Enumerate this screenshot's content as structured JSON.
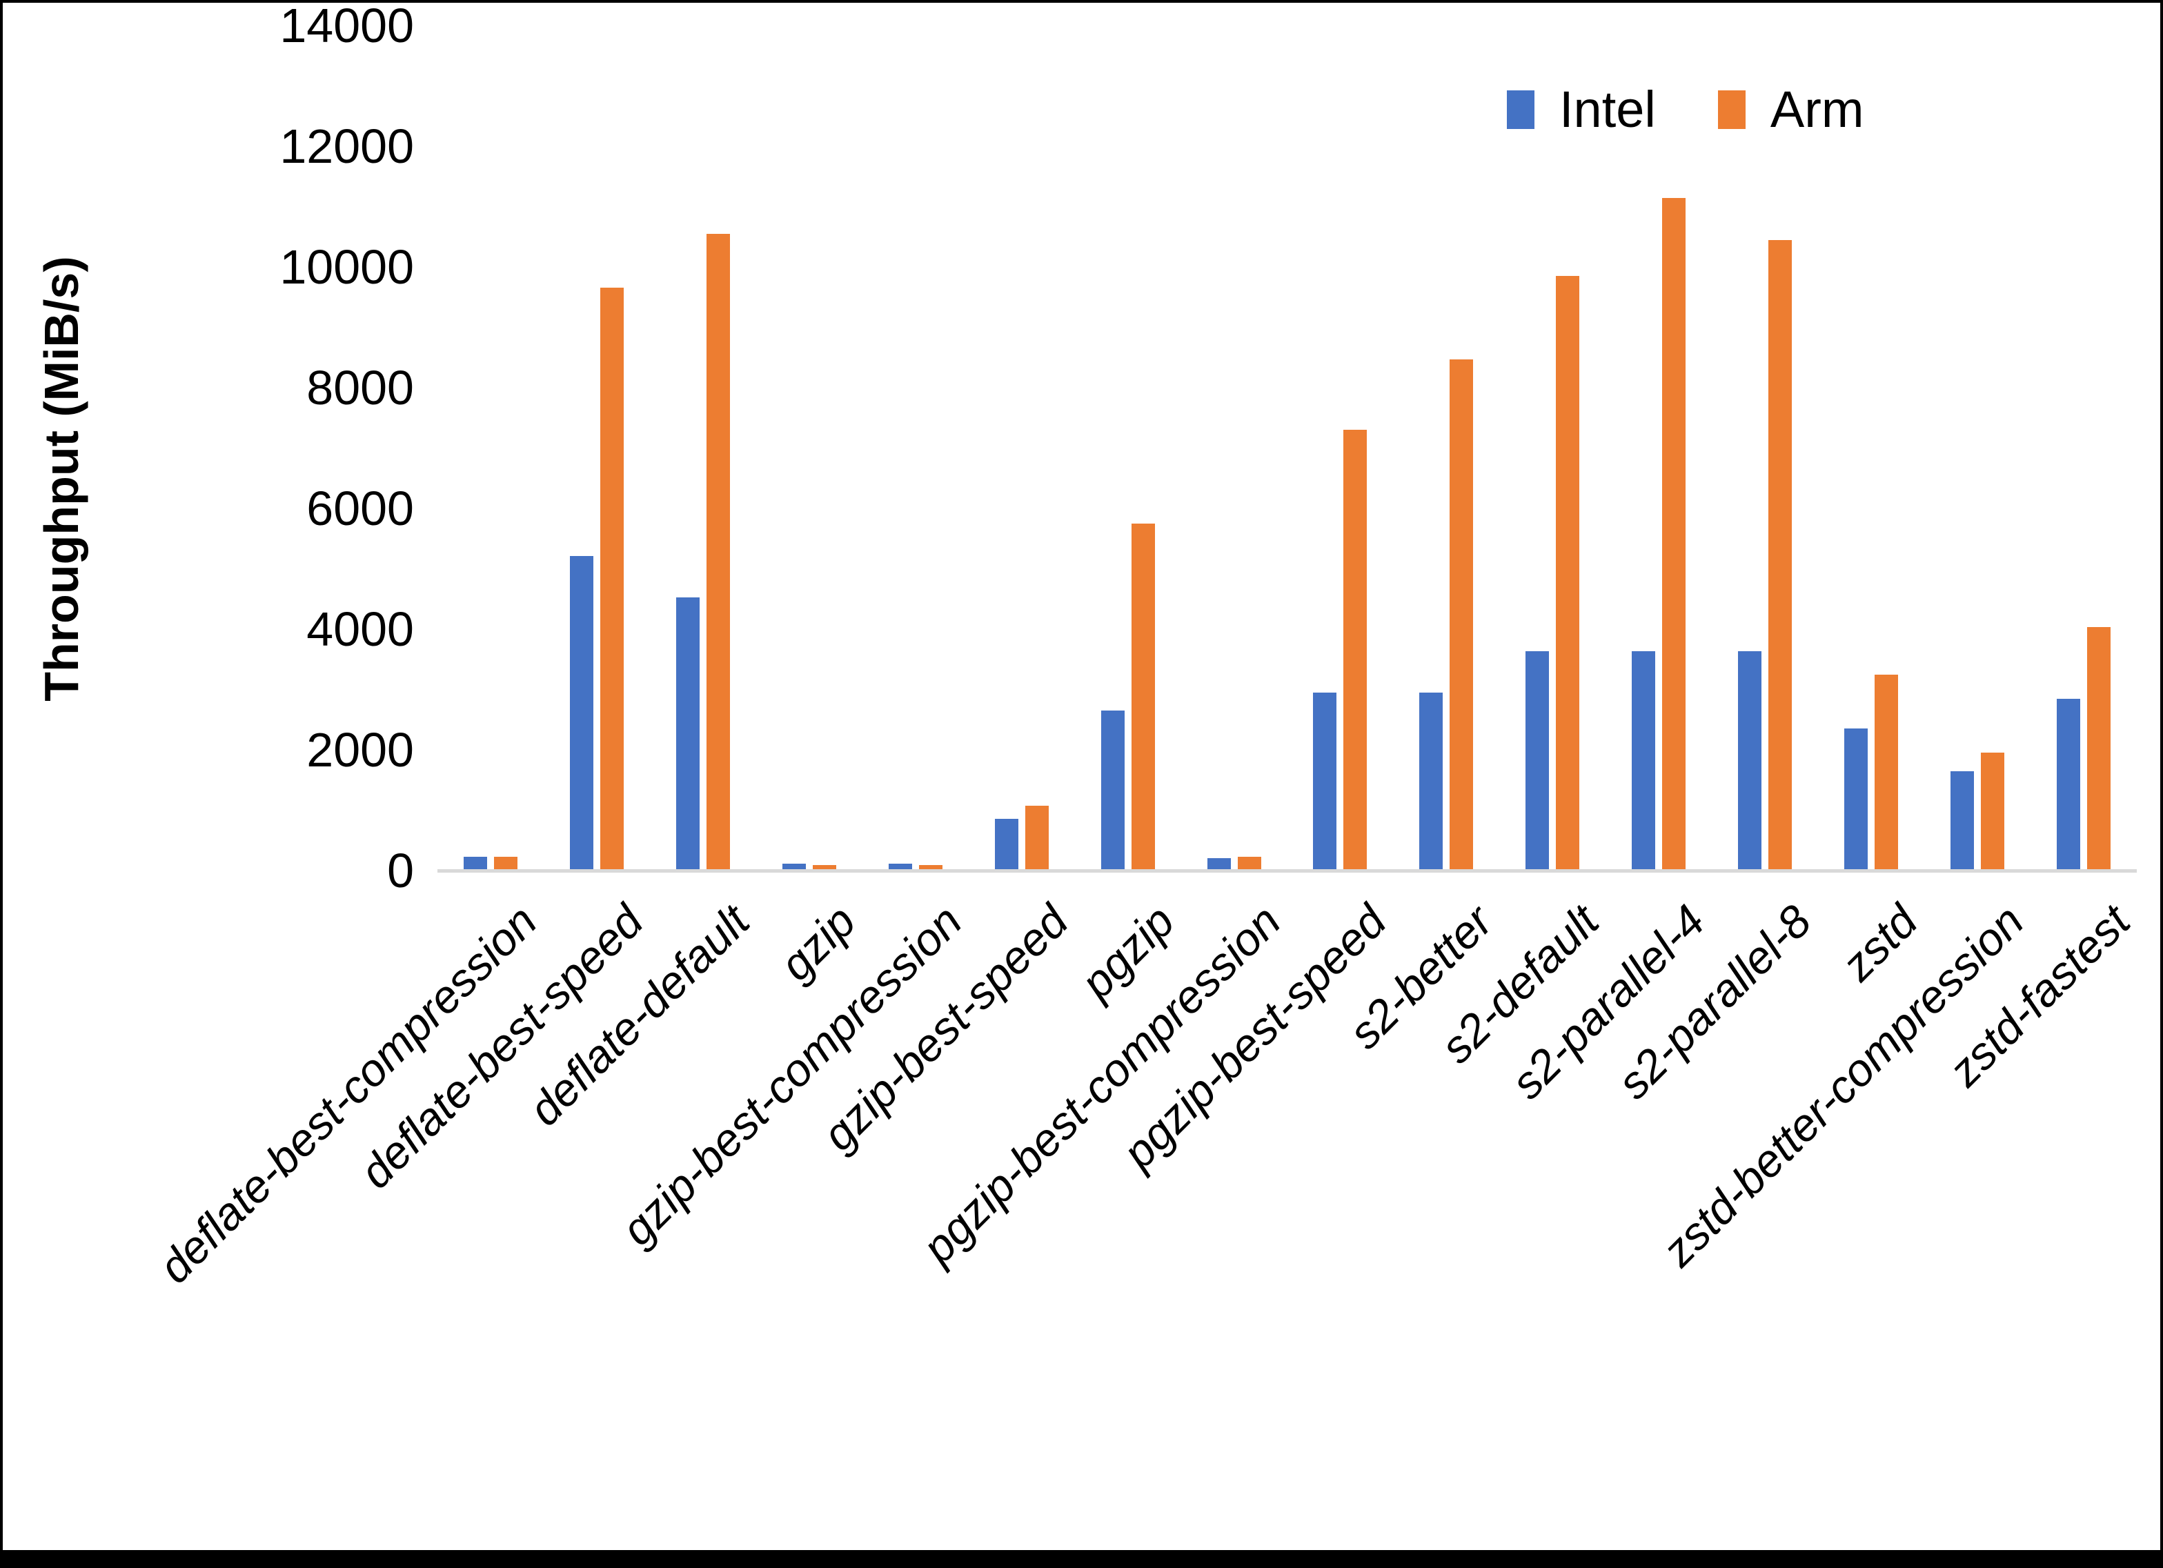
{
  "chart_data": {
    "type": "bar",
    "title": "",
    "xlabel": "",
    "ylabel": "Throughput (MiB/s)",
    "ylim": [
      0,
      14000
    ],
    "yticks": [
      0,
      2000,
      4000,
      6000,
      8000,
      10000,
      12000,
      14000
    ],
    "grid": false,
    "legend_position": "top-right",
    "categories": [
      "deflate-best-compression",
      "deflate-best-speed",
      "deflate-default",
      "gzip",
      "gzip-best-compression",
      "gzip-best-speed",
      "pgzip",
      "pgzip-best-compression",
      "pgzip-best-speed",
      "s2-better",
      "s2-default",
      "s2-parallel-4",
      "s2-parallel-8",
      "zstd",
      "zstd-better-compression",
      "zstd-fastest"
    ],
    "series": [
      {
        "name": "Intel",
        "color": "#4472C4",
        "values": [
          230,
          5210,
          4530,
          115,
          115,
          855,
          2650,
          210,
          2950,
          2950,
          3630,
          3630,
          3630,
          2350,
          1650,
          2850
        ]
      },
      {
        "name": "Arm",
        "color": "#ED7D31",
        "values": [
          225,
          9660,
          10550,
          90,
          95,
          1075,
          5750,
          230,
          7300,
          8470,
          9850,
          11140,
          10450,
          3250,
          1950,
          4030
        ]
      }
    ]
  },
  "colors": {
    "axis_line": "#D9D9D9",
    "text": "#000000",
    "background": "#FFFFFF",
    "bottom_bar": "#000000"
  }
}
